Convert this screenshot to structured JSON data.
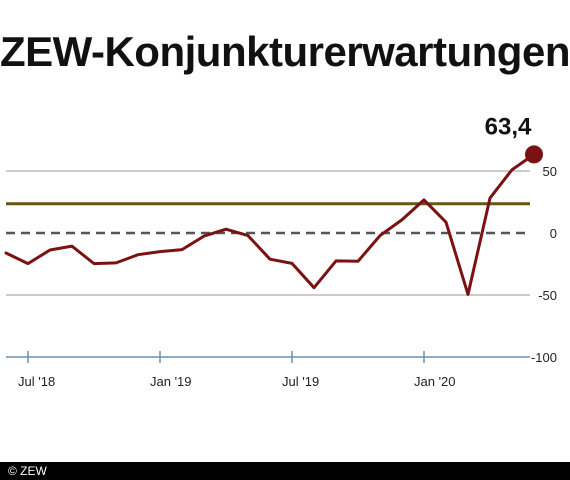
{
  "title": "ZEW-Konjunkturerwartungen",
  "footer": "© ZEW",
  "colors": {
    "series": "#7a1212",
    "reference_line": "#6b5418",
    "zero_line": "#555555",
    "grid": "#999999",
    "axis": "#6f8fa8",
    "text": "#222222"
  },
  "chart_data": {
    "type": "line",
    "title": "ZEW-Konjunkturerwartungen",
    "xlabel": "",
    "ylabel": "",
    "x": [
      "2018-06",
      "2018-07",
      "2018-08",
      "2018-09",
      "2018-10",
      "2018-11",
      "2018-12",
      "2019-01",
      "2019-02",
      "2019-03",
      "2019-04",
      "2019-05",
      "2019-06",
      "2019-07",
      "2019-08",
      "2019-09",
      "2019-10",
      "2019-11",
      "2019-12",
      "2020-01",
      "2020-02",
      "2020-03",
      "2020-04",
      "2020-05",
      "2020-06"
    ],
    "series": [
      {
        "values": [
          -16.1,
          -24.7,
          -13.7,
          -10.6,
          -24.7,
          -24.1,
          -17.5,
          -15.0,
          -13.4,
          -2.5,
          3.1,
          -2.1,
          -21.1,
          -24.5,
          -44.1,
          -22.5,
          -22.8,
          -2.1,
          10.7,
          26.7,
          8.7,
          -49.5,
          28.2,
          51.0,
          63.4
        ]
      }
    ],
    "highlight": {
      "index": 24,
      "label": "63,4"
    },
    "reference_line": 23.6,
    "yticks": [
      50,
      0,
      -50,
      -100
    ],
    "ytick_labels": [
      "50",
      "0",
      "-50",
      "-100"
    ],
    "xtick_labels": [
      {
        "x": "2018-07",
        "label": "Jul '18"
      },
      {
        "x": "2019-01",
        "label": "Jan '19"
      },
      {
        "x": "2019-07",
        "label": "Jul '19"
      },
      {
        "x": "2020-01",
        "label": "Jan '20"
      }
    ],
    "ylim": [
      -100,
      73
    ],
    "grid": true,
    "legend": "none"
  }
}
